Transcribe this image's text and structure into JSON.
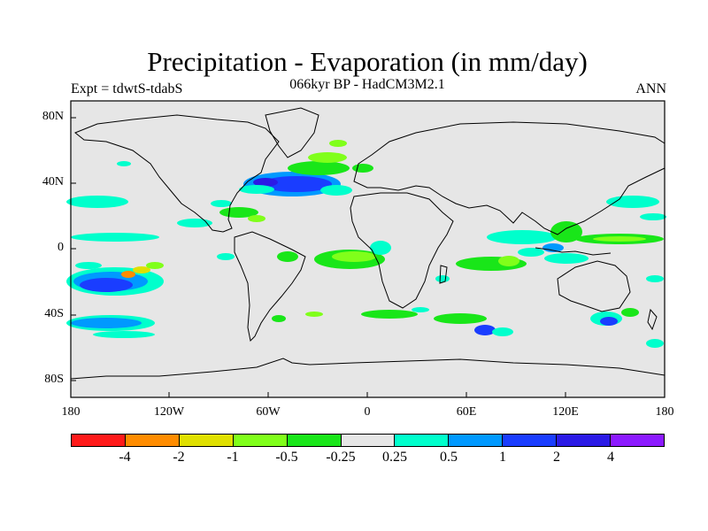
{
  "title": "Precipitation - Evaporation (in mm/day)",
  "subtitle": "066kyr BP - HadCM3M2.1",
  "experiment": "Expt = tdwtS-tdabS",
  "season": "ANN",
  "axes": {
    "y_ticks": [
      "80N",
      "40N",
      "0",
      "40S",
      "80S"
    ],
    "x_ticks": [
      "180",
      "120W",
      "60W",
      "0",
      "60E",
      "120E",
      "180"
    ]
  },
  "colorbar": {
    "colors": [
      "#ff1a1a",
      "#ff8c00",
      "#e0e000",
      "#80ff1a",
      "#19e619",
      "#e6e6e6",
      "#00ffcc",
      "#0099ff",
      "#1a3dff",
      "#2b1ae6",
      "#8c1aff"
    ],
    "labels": [
      "-4",
      "-2",
      "-1",
      "-0.5",
      "-0.25",
      "0.25",
      "0.5",
      "1",
      "2",
      "4"
    ]
  },
  "map_background": "#e6e6e6",
  "chart_data": {
    "type": "heatmap",
    "title": "Precipitation - Evaporation (in mm/day)",
    "subtitle": "066kyr BP - HadCM3M2.1",
    "projection": "cylindrical equidistant",
    "x_range": [
      -180,
      180
    ],
    "y_range": [
      -90,
      90
    ],
    "units": "mm/day",
    "contour_levels": [
      -4,
      -2,
      -1,
      -0.5,
      -0.25,
      0.25,
      0.5,
      1,
      2,
      4
    ]
  }
}
